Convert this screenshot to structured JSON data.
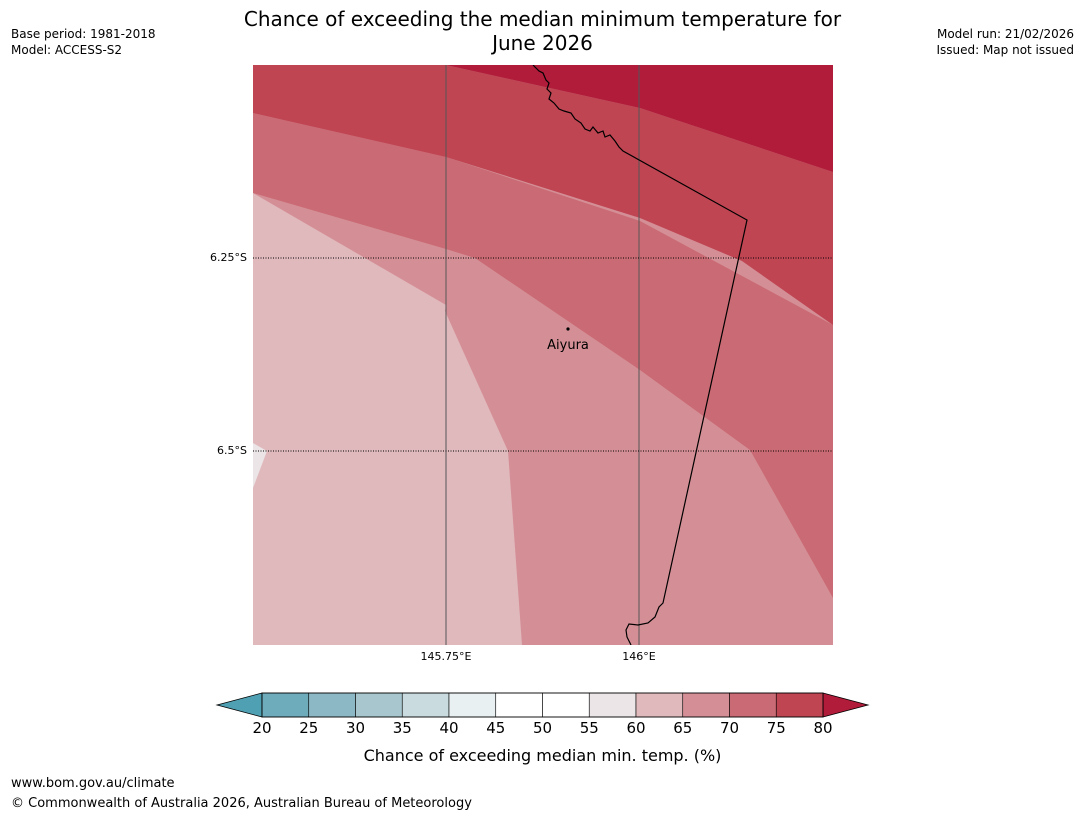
{
  "title": {
    "line1": "Chance of exceeding the median minimum temperature for",
    "line2": "June 2026"
  },
  "meta": {
    "base_period": "Base period: 1981-2018",
    "model": "Model: ACCESS-S2",
    "model_run": "Model run: 21/02/2026",
    "issued": "Issued: Map not issued"
  },
  "map": {
    "lat_labels": [
      "6.25°S",
      "6.5°S"
    ],
    "lon_labels": [
      "145.75°E",
      "146°E"
    ],
    "place": "Aiyura"
  },
  "colorbar": {
    "ticks": [
      "20",
      "25",
      "30",
      "35",
      "40",
      "45",
      "50",
      "55",
      "60",
      "65",
      "70",
      "75",
      "80"
    ],
    "colors": [
      "#6eabbb",
      "#8cb8c5",
      "#a8c6cd",
      "#c9dbde",
      "#e9f0f2",
      "#ffffff",
      "#ffffff",
      "#ebe5e7",
      "#e0b9bd",
      "#d48f96",
      "#ca6a74",
      "#bf4553"
    ],
    "under_color": "#4fa0b2",
    "over_color": "#b01c3a",
    "label": "Chance of exceeding median min. temp. (%)"
  },
  "footer": {
    "url": "www.bom.gov.au/climate",
    "copyright": "© Commonwealth of Australia 2026, Australian Bureau of Meteorology"
  }
}
